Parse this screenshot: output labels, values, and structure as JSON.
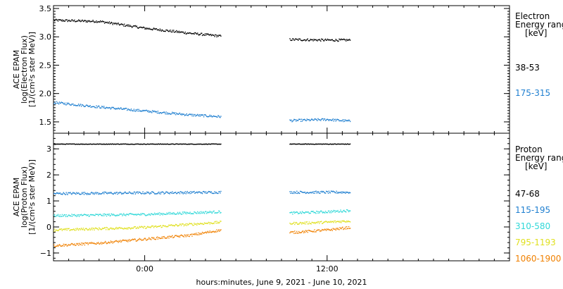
{
  "figure": {
    "xlabel": "hours:minutes, June  9, 2021 - June 10, 2021",
    "x_tick_labels": [
      "0:00",
      "12:00"
    ]
  },
  "chart_data": [
    {
      "type": "scatter",
      "panel": "electron",
      "ylabel_lines": [
        "ACE EPAM",
        "log(Electron Flux)",
        "[1/(cm²s ster MeV)]"
      ],
      "legend_title_lines": [
        "Electron",
        "Energy ranges",
        "[keV]"
      ],
      "xlim_hours": [
        -6,
        24
      ],
      "ylim": [
        1.3,
        3.55
      ],
      "y_ticks": [
        1.5,
        2.0,
        2.5,
        3.0,
        3.5
      ],
      "y_tick_labels": [
        "1.5",
        "2.0",
        "2.5",
        "3.0",
        "3.5"
      ],
      "data_gaps_hours": [
        [
          5.0,
          9.5
        ]
      ],
      "series": [
        {
          "name": "38-53",
          "color": "#000000",
          "x": [
            -6,
            -3,
            0,
            3,
            5,
            9.5,
            12,
            13.5
          ],
          "y": [
            3.3,
            3.28,
            3.16,
            3.07,
            3.02,
            2.96,
            2.95,
            2.95
          ]
        },
        {
          "name": "175-315",
          "color": "#1f7fd0",
          "x": [
            -6,
            -3,
            0,
            3,
            5,
            9.5,
            12,
            13.5
          ],
          "y": [
            1.85,
            1.77,
            1.7,
            1.63,
            1.6,
            1.53,
            1.55,
            1.52
          ]
        }
      ]
    },
    {
      "type": "scatter",
      "panel": "proton",
      "ylabel_lines": [
        "ACE EPAM",
        "log(Proton Flux)",
        "[1/(cm²s ster MeV)]"
      ],
      "legend_title_lines": [
        "Proton",
        "Energy ranges",
        "[keV]"
      ],
      "xlim_hours": [
        -6,
        24
      ],
      "ylim": [
        -1.3,
        3.6
      ],
      "y_ticks": [
        -1,
        0,
        1,
        2,
        3
      ],
      "y_tick_labels": [
        "−1",
        "0",
        "1",
        "2",
        "3"
      ],
      "data_gaps_hours": [
        [
          5.0,
          9.5
        ]
      ],
      "series": [
        {
          "name": "47-68",
          "color": "#000000",
          "x": [
            -6,
            5,
            9.5,
            13.5
          ],
          "y": [
            3.2,
            3.2,
            3.2,
            3.2
          ]
        },
        {
          "name": "115-195",
          "color": "#1f7fd0",
          "x": [
            -6,
            5,
            9.5,
            13.5
          ],
          "y": [
            1.3,
            1.35,
            1.35,
            1.35
          ]
        },
        {
          "name": "310-580",
          "color": "#30d8d8",
          "x": [
            -6,
            0,
            5,
            9.5,
            12,
            13.5
          ],
          "y": [
            0.45,
            0.5,
            0.6,
            0.55,
            0.6,
            0.65
          ]
        },
        {
          "name": "795-1193",
          "color": "#e0e020",
          "x": [
            -6,
            0,
            5,
            9.5,
            12,
            13.5
          ],
          "y": [
            -0.1,
            0.0,
            0.2,
            0.15,
            0.2,
            0.25
          ]
        },
        {
          "name": "1060-1900",
          "color": "#f08000",
          "x": [
            -6,
            -3,
            0,
            3,
            5,
            9.5,
            12,
            13.5
          ],
          "y": [
            -0.7,
            -0.6,
            -0.45,
            -0.3,
            -0.1,
            -0.2,
            -0.1,
            0.0
          ]
        }
      ]
    }
  ]
}
